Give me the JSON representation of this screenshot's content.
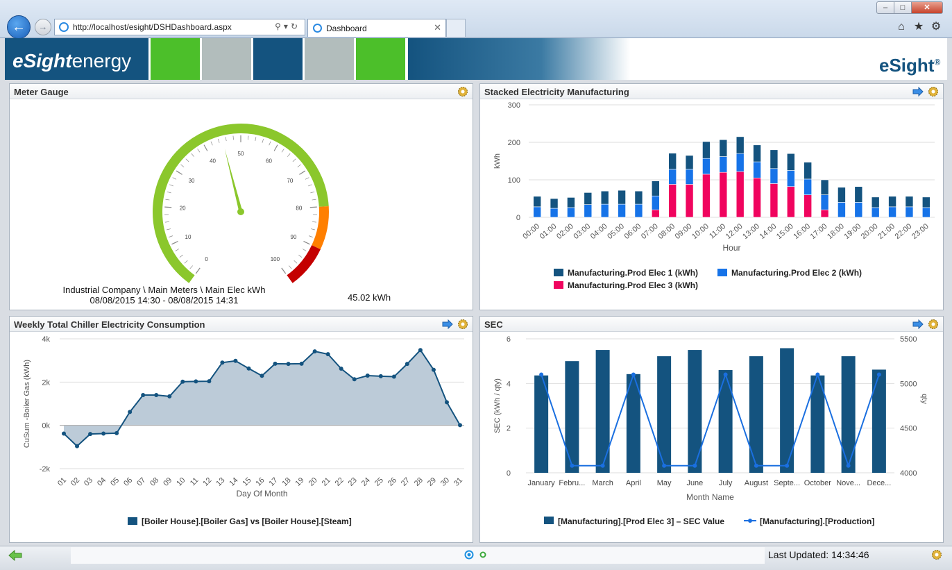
{
  "browser": {
    "url": "http://localhost/esight/DSHDashboard.aspx",
    "tab_title": "Dashboard"
  },
  "banner": {
    "brand_bold": "eSight",
    "brand_light": "energy",
    "brand_right": "eSight",
    "brand_right_mark": "®",
    "blocks": [
      "#4cbf2a",
      "#b2bdbc",
      "#14537f",
      "#b2bdbc",
      "#4cbf2a"
    ]
  },
  "panels": {
    "meter": {
      "title": "Meter Gauge",
      "ticks": [
        "0",
        "10",
        "20",
        "30",
        "40",
        "50",
        "60",
        "70",
        "80",
        "90",
        "100"
      ],
      "needle_value": 45.02,
      "caption_line1": "Industrial Company \\ Main Meters \\ Main Elec kWh",
      "caption_line2": "08/08/2015 14:30 - 08/08/2015 14:31",
      "value_text": "45.02 kWh"
    },
    "stacked": {
      "title": "Stacked Electricity Manufacturing"
    },
    "chiller": {
      "title": "Weekly Total Chiller Electricity Consumption"
    },
    "sec": {
      "title": "SEC"
    }
  },
  "chart_data": [
    {
      "type": "bar",
      "stacked": true,
      "xlabel": "Hour",
      "ylabel": "kWh",
      "ylim": [
        0,
        300
      ],
      "yticks": [
        "0",
        "100",
        "200",
        "300"
      ],
      "categories": [
        "00:00",
        "01:00",
        "02:00",
        "03:00",
        "04:00",
        "05:00",
        "06:00",
        "07:00",
        "08:00",
        "09:00",
        "10:00",
        "11:00",
        "12:00",
        "13:00",
        "14:00",
        "15:00",
        "16:00",
        "17:00",
        "18:00",
        "19:00",
        "20:00",
        "21:00",
        "22:00",
        "23:00"
      ],
      "series": [
        {
          "name": "Manufacturing.Prod Elec 3 (kWh)",
          "color": "#f0045e",
          "values": [
            0,
            0,
            0,
            0,
            0,
            0,
            0,
            20,
            88,
            88,
            115,
            120,
            122,
            105,
            90,
            82,
            60,
            20,
            0,
            0,
            0,
            0,
            0,
            0
          ]
        },
        {
          "name": "Manufacturing.Prod Elec 2 (kWh)",
          "color": "#1673e8",
          "values": [
            28,
            24,
            26,
            34,
            35,
            35,
            35,
            37,
            40,
            40,
            42,
            42,
            48,
            43,
            40,
            43,
            42,
            40,
            40,
            40,
            26,
            28,
            28,
            26
          ]
        },
        {
          "name": "Manufacturing.Prod Elec 1 (kWh)",
          "color": "#14537f",
          "values": [
            28,
            26,
            27,
            32,
            35,
            37,
            35,
            40,
            43,
            37,
            45,
            45,
            45,
            45,
            50,
            45,
            45,
            40,
            40,
            42,
            28,
            28,
            28,
            28
          ]
        }
      ],
      "legend": "bottom"
    },
    {
      "type": "area",
      "xlabel": "Day Of Month",
      "ylabel": "CuSum -Boiler Gas (kWh)",
      "ylim": [
        -2000,
        4000
      ],
      "yticks": [
        "-2k",
        "0k",
        "2k",
        "4k"
      ],
      "categories": [
        "01",
        "02",
        "03",
        "04",
        "05",
        "06",
        "07",
        "08",
        "09",
        "10",
        "11",
        "12",
        "13",
        "14",
        "15",
        "16",
        "17",
        "18",
        "19",
        "20",
        "21",
        "22",
        "23",
        "24",
        "25",
        "26",
        "27",
        "28",
        "29",
        "30",
        "31"
      ],
      "series": [
        {
          "name": "[Boiler House].[Boiler Gas] vs [Boiler House].[Steam]",
          "color": "#14537f",
          "fill": "#bccbd8",
          "values": [
            -380,
            -960,
            -400,
            -380,
            -360,
            620,
            1400,
            1400,
            1340,
            2020,
            2030,
            2040,
            2900,
            2980,
            2630,
            2290,
            2850,
            2840,
            2850,
            3420,
            3290,
            2620,
            2130,
            2300,
            2270,
            2250,
            2840,
            3480,
            2570,
            1070,
            10
          ]
        }
      ],
      "legend": "bottom"
    },
    {
      "type": "bar",
      "xlabel": "Month Name",
      "ylabel": "SEC (kWh / qty)",
      "y2label": "qty",
      "ylim": [
        0,
        6
      ],
      "yticks": [
        "0",
        "2",
        "4",
        "6"
      ],
      "y2lim": [
        4000,
        5500
      ],
      "y2ticks": [
        "4000",
        "4500",
        "5000",
        "5500"
      ],
      "categories": [
        "January",
        "Febru...",
        "March",
        "April",
        "May",
        "June",
        "July",
        "August",
        "Septe...",
        "October",
        "Nove...",
        "Dece..."
      ],
      "series": [
        {
          "name": "[Manufacturing].[Prod Elec 3] – SEC Value",
          "color": "#14537f",
          "type": "bar",
          "values": [
            4.36,
            5.0,
            5.5,
            4.42,
            5.22,
            5.5,
            4.6,
            5.22,
            5.58,
            4.36,
            5.22,
            4.62
          ]
        },
        {
          "name": "[Manufacturing].[Production]",
          "color": "#1a6fe0",
          "type": "line",
          "axis": "y2",
          "values": [
            5100,
            4080,
            4080,
            5100,
            4080,
            4080,
            5100,
            4080,
            4080,
            5100,
            4080,
            5100
          ]
        }
      ],
      "legend": "bottom"
    }
  ],
  "status": {
    "last_updated": "Last Updated: 14:34:46"
  }
}
